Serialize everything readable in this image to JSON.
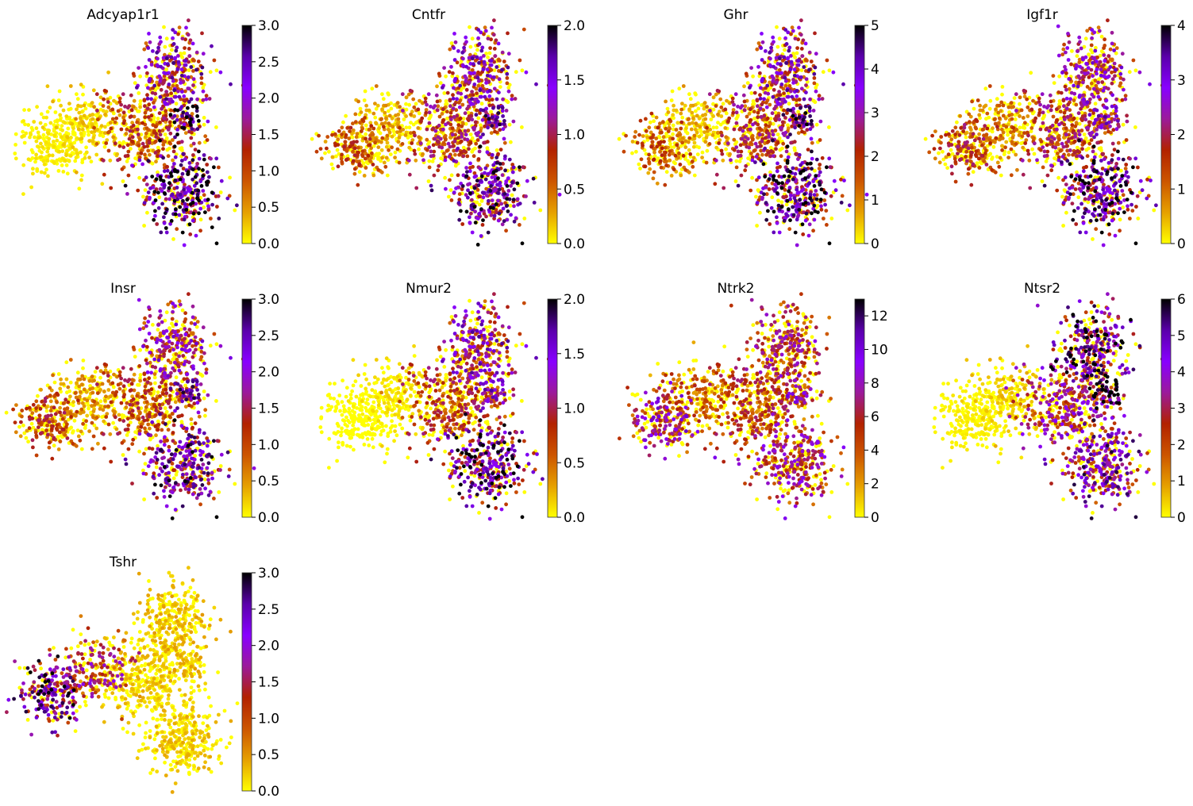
{
  "chart_data": {
    "type": "scatter",
    "layout": {
      "rows": 3,
      "cols": 4
    },
    "colormap": {
      "name": "gnuplot_r",
      "stops": [
        "#ffff00",
        "#e6a000",
        "#cc5500",
        "#b22200",
        "#9b1a9b",
        "#8800ff",
        "#5a00aa",
        "#000000"
      ]
    },
    "clusters": [
      "far-left",
      "left",
      "center",
      "top",
      "right-node",
      "bottom"
    ],
    "panels": [
      {
        "title": "Adcyap1r1",
        "vmin": 0,
        "vmax": 3.0,
        "ticks": [
          "0.0",
          "0.5",
          "1.0",
          "1.5",
          "2.0",
          "2.5",
          "3.0"
        ],
        "cluster_expression": {
          "far-left": 0.1,
          "left": 0.25,
          "center": 1.0,
          "top": 1.7,
          "right-node": 2.2,
          "bottom": 2.2
        }
      },
      {
        "title": "Cntfr",
        "vmin": 0,
        "vmax": 2.0,
        "ticks": [
          "0.0",
          "0.5",
          "1.0",
          "1.5",
          "2.0"
        ],
        "cluster_expression": {
          "far-left": 0.6,
          "left": 0.3,
          "center": 0.8,
          "top": 1.1,
          "right-node": 1.2,
          "bottom": 1.3
        }
      },
      {
        "title": "Ghr",
        "vmin": 0,
        "vmax": 5,
        "ticks": [
          "0",
          "1",
          "2",
          "3",
          "4",
          "5"
        ],
        "cluster_expression": {
          "far-left": 1.4,
          "left": 0.6,
          "center": 2.0,
          "top": 2.8,
          "right-node": 3.2,
          "bottom": 3.4
        }
      },
      {
        "title": "Igf1r",
        "vmin": 0,
        "vmax": 4,
        "ticks": [
          "0",
          "1",
          "2",
          "3",
          "4"
        ],
        "cluster_expression": {
          "far-left": 1.4,
          "left": 0.9,
          "center": 1.6,
          "top": 2.0,
          "right-node": 2.2,
          "bottom": 2.8
        }
      },
      {
        "title": "Insr",
        "vmin": 0,
        "vmax": 3.0,
        "ticks": [
          "0.0",
          "0.5",
          "1.0",
          "1.5",
          "2.0",
          "2.5",
          "3.0"
        ],
        "cluster_expression": {
          "far-left": 1.0,
          "left": 0.5,
          "center": 1.0,
          "top": 1.5,
          "right-node": 1.8,
          "bottom": 1.9
        }
      },
      {
        "title": "Nmur2",
        "vmin": 0,
        "vmax": 2.0,
        "ticks": [
          "0.0",
          "0.5",
          "1.0",
          "1.5",
          "2.0"
        ],
        "cluster_expression": {
          "far-left": 0.0,
          "left": 0.1,
          "center": 0.7,
          "top": 1.1,
          "right-node": 1.1,
          "bottom": 1.4
        }
      },
      {
        "title": "Ntrk2",
        "vmin": 0,
        "vmax": 13,
        "ticks": [
          "0",
          "2",
          "4",
          "6",
          "8",
          "10",
          "12"
        ],
        "cluster_expression": {
          "far-left": 6.5,
          "left": 3.5,
          "center": 4.5,
          "top": 5.5,
          "right-node": 6.5,
          "bottom": 6.0
        }
      },
      {
        "title": "Ntsr2",
        "vmin": 0,
        "vmax": 6,
        "ticks": [
          "0",
          "1",
          "2",
          "3",
          "4",
          "5",
          "6"
        ],
        "cluster_expression": {
          "far-left": 0.15,
          "left": 0.5,
          "center": 2.8,
          "top": 4.2,
          "right-node": 4.8,
          "bottom": 3.6
        }
      },
      {
        "title": "Tshr",
        "vmin": 0,
        "vmax": 3.0,
        "ticks": [
          "0.0",
          "0.5",
          "1.0",
          "1.5",
          "2.0",
          "2.5",
          "3.0"
        ],
        "cluster_expression": {
          "far-left": 2.0,
          "left": 1.3,
          "center": 0.25,
          "top": 0.3,
          "right-node": 0.3,
          "bottom": 0.25
        }
      }
    ]
  }
}
